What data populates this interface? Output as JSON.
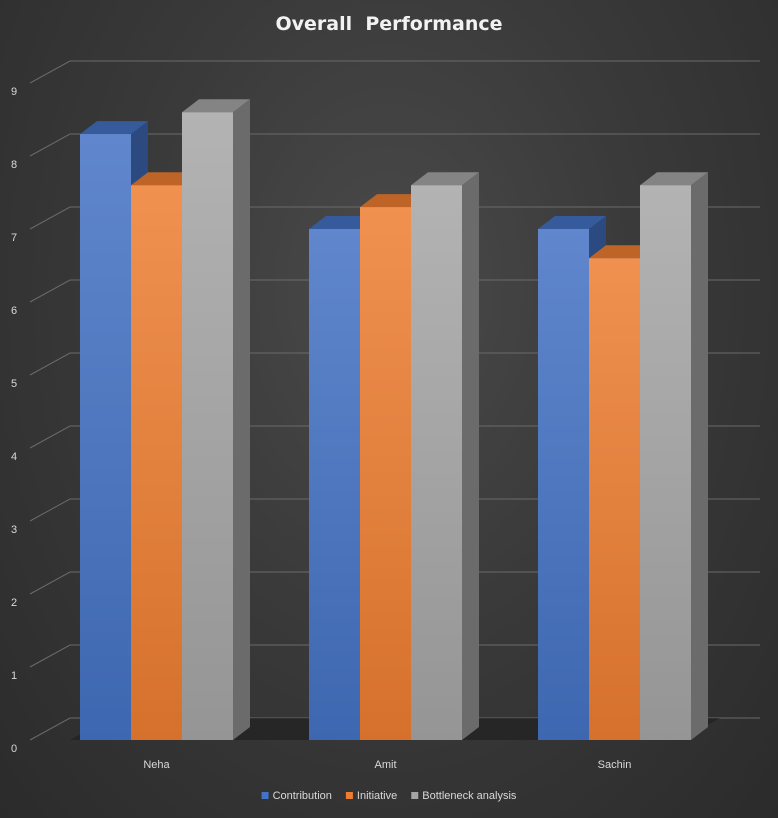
{
  "chart_data": {
    "type": "bar",
    "variant": "3d-clustered-column",
    "title": "Overall  Performance",
    "categories": [
      "Neha",
      "Amit",
      "Sachin"
    ],
    "series": [
      {
        "name": "Contribution",
        "values": [
          8.3,
          7.0,
          7.0
        ],
        "color": "#4472C4"
      },
      {
        "name": "Initiative",
        "values": [
          7.6,
          7.3,
          6.6
        ],
        "color": "#ED7D31"
      },
      {
        "name": "Bottleneck analysis",
        "values": [
          8.6,
          7.6,
          7.6
        ],
        "color": "#A5A5A5"
      }
    ],
    "ylim": [
      0,
      9
    ],
    "yticks": [
      "0",
      "1",
      "2",
      "3",
      "4",
      "5",
      "6",
      "7",
      "8",
      "9"
    ],
    "grid": true,
    "legend": "bottom",
    "background": "#333333"
  }
}
